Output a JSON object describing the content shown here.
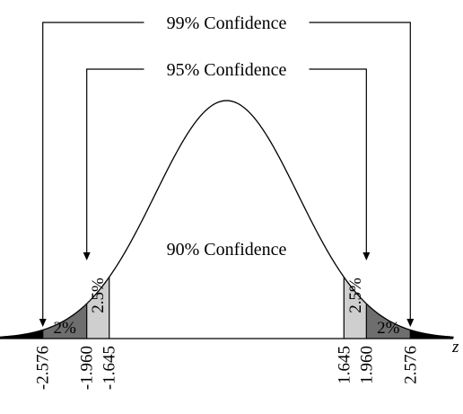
{
  "chart_data": {
    "type": "area",
    "title": "",
    "xlabel": "z",
    "ylabel": "",
    "xlim": [
      -3.6,
      3.6
    ],
    "distribution": "standard normal",
    "confidence_labels": [
      {
        "text": "99% Confidence",
        "bounds": [
          -2.576,
          2.576
        ]
      },
      {
        "text": "95% Confidence",
        "bounds": [
          -1.96,
          1.96
        ]
      },
      {
        "text": "90% Confidence",
        "bounds": [
          -1.645,
          1.645
        ]
      }
    ],
    "shaded_regions": [
      {
        "from": -3.6,
        "to": -2.576,
        "color": "#000000"
      },
      {
        "from": -2.576,
        "to": -1.96,
        "color": "#6e6e6e",
        "label": "2%"
      },
      {
        "from": -1.96,
        "to": -1.645,
        "color": "#cfcfcf",
        "label": "2.5%"
      },
      {
        "from": 1.645,
        "to": 1.96,
        "color": "#cfcfcf",
        "label": "2.5%"
      },
      {
        "from": 1.96,
        "to": 2.576,
        "color": "#6e6e6e",
        "label": "2%"
      },
      {
        "from": 2.576,
        "to": 3.6,
        "color": "#000000"
      }
    ],
    "ticks": [
      {
        "value": -2.576,
        "label": "-2.576"
      },
      {
        "value": -1.96,
        "label": "-1.960"
      },
      {
        "value": -1.645,
        "label": "-1.645"
      },
      {
        "value": 1.645,
        "label": "1.645"
      },
      {
        "value": 1.96,
        "label": "1.960"
      },
      {
        "value": 2.576,
        "label": "2.576"
      }
    ]
  }
}
